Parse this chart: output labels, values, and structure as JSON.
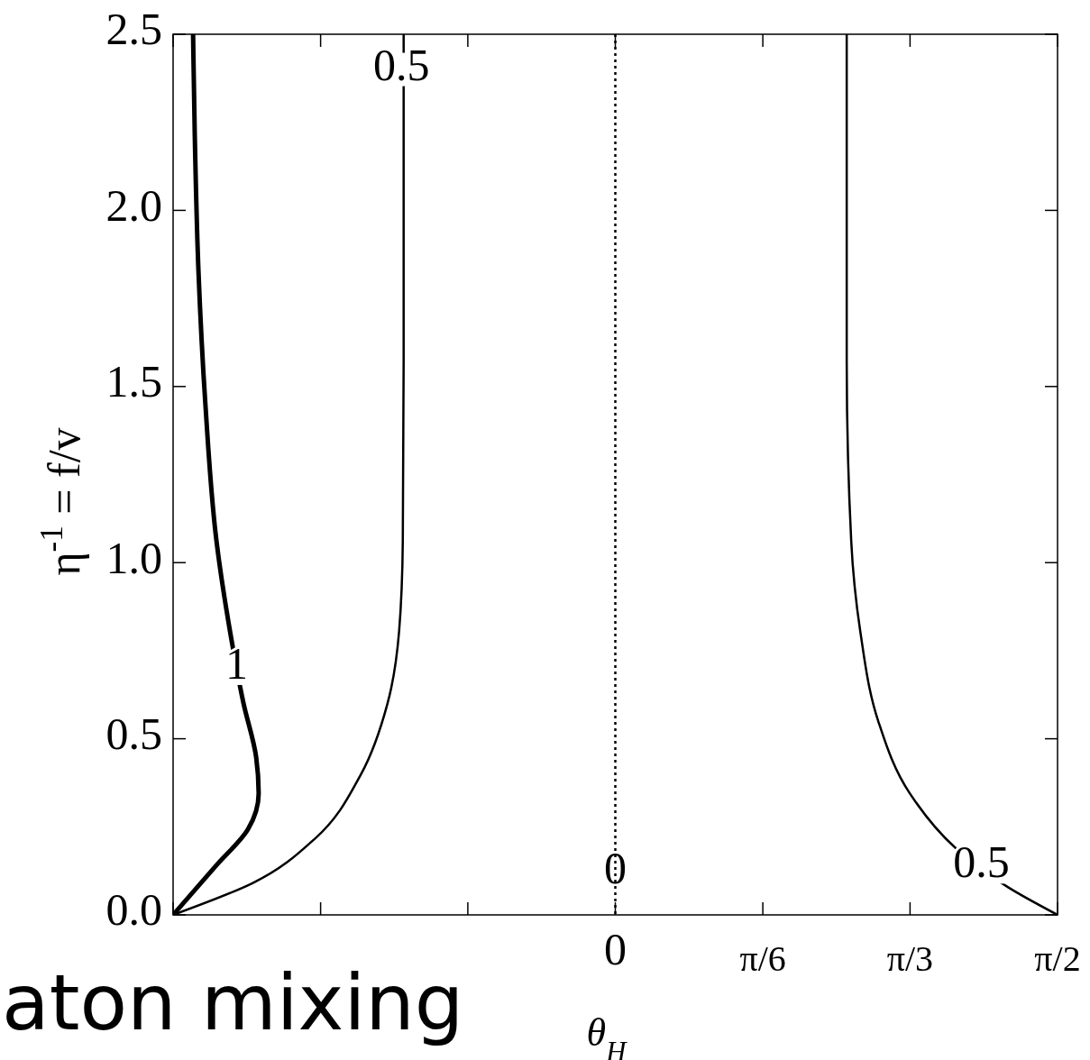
{
  "chart_data": {
    "type": "line",
    "xlabel": "θ$_{H}$",
    "ylabel": "η$^{-1}$ = f/v",
    "xlim": [
      -1.571,
      1.571
    ],
    "ylim": [
      0,
      2.5
    ],
    "xticks": [
      {
        "value": -1.571,
        "label": null
      },
      {
        "value": -1.047,
        "label": null
      },
      {
        "value": -0.524,
        "label": null
      },
      {
        "value": 0,
        "label": "0"
      },
      {
        "value": 0.524,
        "label": "π/6"
      },
      {
        "value": 1.047,
        "label": "π/3"
      },
      {
        "value": 1.571,
        "label": "π/2"
      }
    ],
    "yticks": [
      {
        "value": 0,
        "label": "0.0"
      },
      {
        "value": 0.5,
        "label": "0.5"
      },
      {
        "value": 1,
        "label": "1.0"
      },
      {
        "value": 1.5,
        "label": "1.5"
      },
      {
        "value": 2,
        "label": "2.0"
      },
      {
        "value": 2.5,
        "label": "2.5"
      }
    ],
    "grid": false,
    "marker": "none",
    "line_style": "solid",
    "series": [
      {
        "color": "#000000",
        "x": [
          -1.571,
          -1.417,
          -1.305,
          -1.267,
          -1.276,
          -1.321,
          -1.369,
          -1.417,
          -1.456,
          -1.481,
          -1.494,
          -1.5
        ],
        "values": [
          0,
          0.141,
          0.243,
          0.345,
          0.448,
          0.601,
          0.806,
          1.062,
          1.446,
          1.83,
          2.213,
          2.5
        ]
      },
      {
        "color": "#000000",
        "x": [
          -1.571,
          -1.289,
          -1.065,
          -0.905,
          -0.809,
          -0.768,
          -0.755,
          -0.752,
          -0.752
        ],
        "values": [
          0,
          0.09,
          0.218,
          0.397,
          0.601,
          0.806,
          1.062,
          1.574,
          2.5
        ]
      },
      {
        "color": "#000000",
        "x": [
          1.571,
          1.398,
          1.206,
          1.046,
          0.934,
          0.87,
          0.838,
          0.822,
          0.822
        ],
        "values": [
          0,
          0.077,
          0.192,
          0.345,
          0.55,
          0.806,
          1.062,
          1.574,
          2.5
        ]
      }
    ],
    "ref_lines": [
      {
        "axis": "x",
        "value": 0,
        "label": "0",
        "line_style": "dotted",
        "color": "#000000"
      }
    ],
    "annotations": [
      {
        "text": "1",
        "x": -1.345,
        "y": 0.7
      },
      {
        "text": "0.5",
        "x": -0.76,
        "y": 2.4
      },
      {
        "text": "0.5",
        "x": 1.3,
        "y": 0.136
      },
      "aton mixing"
    ]
  }
}
